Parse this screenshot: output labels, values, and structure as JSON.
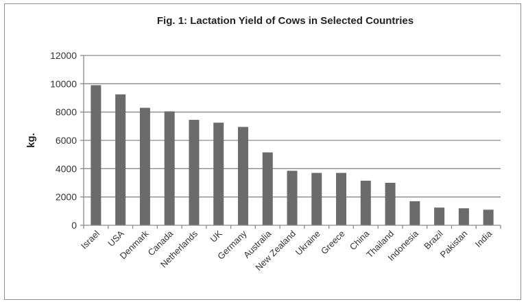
{
  "chart_data": {
    "type": "bar",
    "title": "Fig. 1: Lactation Yield of Cows in Selected Countries",
    "xlabel": "",
    "ylabel": "kg.",
    "ylim": [
      0,
      12000
    ],
    "yticks": [
      "0",
      "2000",
      "4000",
      "6000",
      "8000",
      "10000",
      "12000"
    ],
    "grid": true,
    "legend": "none",
    "bar_color": "#6b6b6b",
    "categories": [
      "Israel",
      "USA",
      "Denmark",
      "Canada",
      "Netherlands",
      "UK",
      "Germany",
      "Australia",
      "New Zealand",
      "Ukraine",
      "Greece",
      "China",
      "Thailand",
      "Indonesia",
      "Brazil",
      "Pakistan",
      "India"
    ],
    "values": [
      9900,
      9250,
      8300,
      8050,
      7450,
      7250,
      6950,
      5150,
      3850,
      3700,
      3700,
      3150,
      3000,
      1700,
      1250,
      1200,
      1100
    ]
  }
}
